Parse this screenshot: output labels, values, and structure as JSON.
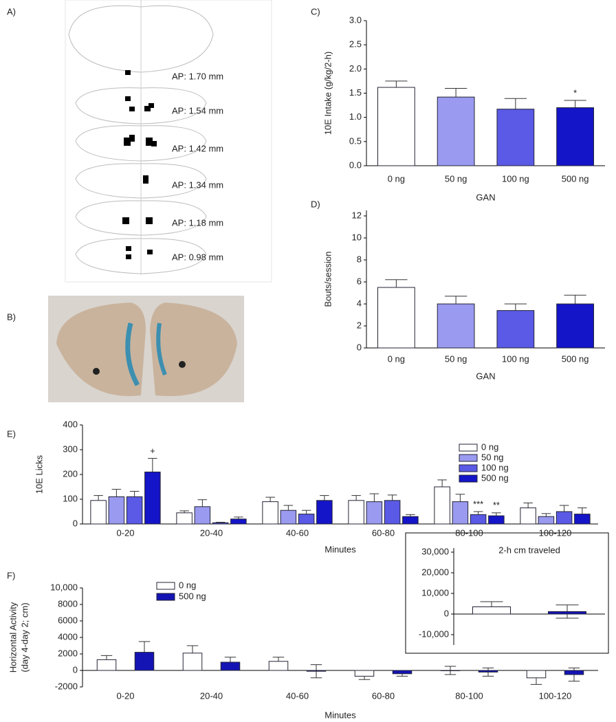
{
  "panel_labels": [
    "A)",
    "B)",
    "C)",
    "D)",
    "E)",
    "F)"
  ],
  "atlas_labels": [
    "AP: 1.70 mm",
    "AP: 1.54 mm",
    "AP: 1.42 mm",
    "AP: 1.34 mm",
    "AP: 1.18 mm",
    "AP: 0.98 mm"
  ],
  "chart_data": [
    {
      "type": "bar",
      "categories": [
        "0 ng",
        "50 ng",
        "100 ng",
        "500 ng"
      ],
      "values": [
        1.62,
        1.42,
        1.17,
        1.2
      ],
      "errors": [
        0.13,
        0.18,
        0.22,
        0.15
      ],
      "colors": [
        "#ffffff",
        "#9a9af0",
        "#5a5ae6",
        "#1414c8"
      ],
      "ylabel": "10E Intake (g/kg/2-h)",
      "xlabel": "GAN",
      "ylim": [
        0,
        3
      ],
      "yticks": [
        {
          "value": 0,
          "label": "0.0"
        },
        {
          "value": 0.5,
          "label": "0.5"
        },
        {
          "value": 1,
          "label": "1.0"
        },
        {
          "value": 1.5,
          "label": "1.5"
        },
        {
          "value": 2,
          "label": "2.0"
        },
        {
          "value": 2.5,
          "label": "2.5"
        },
        {
          "value": 3,
          "label": "3.0"
        }
      ],
      "annotations": [
        "*"
      ]
    },
    {
      "type": "bar",
      "categories": [
        "0 ng",
        "50 ng",
        "100 ng",
        "500 ng"
      ],
      "values": [
        5.5,
        4,
        3.4,
        4
      ],
      "errors": [
        0.7,
        0.7,
        0.6,
        0.8
      ],
      "colors": [
        "#ffffff",
        "#9a9af0",
        "#5a5ae6",
        "#1414c8"
      ],
      "ylabel": "Bouts/session",
      "xlabel": "GAN",
      "ylim": [
        0,
        12.5
      ],
      "yticks": [
        0,
        2,
        4,
        6,
        8,
        10,
        12
      ]
    },
    {
      "type": "grouped-bar",
      "categories": [
        "0-20",
        "20-40",
        "40-60",
        "60-80",
        "80-100",
        "100-120"
      ],
      "ylabel": "10E Licks",
      "xlabel": "Minutes",
      "series": [
        {
          "name": "0 ng",
          "color": "#ffffff",
          "values": [
            95,
            45,
            90,
            95,
            150,
            65
          ],
          "errors": [
            20,
            8,
            18,
            20,
            28,
            20
          ]
        },
        {
          "name": "50 ng",
          "color": "#9a9af0",
          "values": [
            110,
            70,
            55,
            90,
            90,
            30
          ],
          "errors": [
            30,
            28,
            20,
            32,
            30,
            12
          ]
        },
        {
          "name": "100 ng",
          "color": "#5a5ae6",
          "values": [
            110,
            5,
            40,
            95,
            38,
            50
          ],
          "errors": [
            22,
            2,
            15,
            22,
            12,
            25
          ]
        },
        {
          "name": "500 ng",
          "color": "#1414c8",
          "values": [
            210,
            20,
            95,
            30,
            33,
            40
          ],
          "errors": [
            55,
            8,
            20,
            8,
            12,
            25
          ]
        }
      ],
      "ylim": [
        0,
        400
      ],
      "yticks": [
        0,
        100,
        200,
        300,
        400
      ],
      "annotations": [
        "+",
        "***",
        "**"
      ]
    },
    {
      "type": "grouped-bar",
      "categories": [
        "0-20",
        "20-40",
        "40-60",
        "60-80",
        "80-100",
        "100-120"
      ],
      "ylabel": [
        "Horizontal Activity",
        "(day 4-day 2; cm)"
      ],
      "xlabel": "Minutes",
      "series": [
        {
          "name": "0 ng",
          "color": "#ffffff",
          "values": [
            1300,
            2100,
            1100,
            -700,
            0,
            -900
          ],
          "errors": [
            500,
            900,
            500,
            400,
            500,
            800
          ]
        },
        {
          "name": "500 ng",
          "color": "#1414b4",
          "values": [
            2200,
            1000,
            -100,
            -400,
            -200,
            -500
          ],
          "errors": [
            1300,
            600,
            800,
            300,
            500,
            800
          ]
        }
      ],
      "ylim": [
        -2000,
        10000
      ],
      "yticks": [
        -2000,
        0,
        2000,
        4000,
        6000,
        8000,
        {
          "value": 10000,
          "label": "10,000"
        }
      ]
    },
    {
      "type": "bar",
      "title": "2-h cm traveled",
      "categories": [
        null,
        null
      ],
      "values": [
        3500,
        1200
      ],
      "errors": [
        2500,
        3200
      ],
      "colors": [
        "#ffffff",
        "#1414b4"
      ],
      "ylim": [
        -15000,
        32000
      ],
      "yticks": [
        {
          "value": -10000,
          "label": "-10,000"
        },
        0,
        {
          "value": 10000,
          "label": "10,000"
        },
        {
          "value": 20000,
          "label": "20,000"
        },
        {
          "value": 30000,
          "label": "30,000"
        }
      ]
    }
  ]
}
